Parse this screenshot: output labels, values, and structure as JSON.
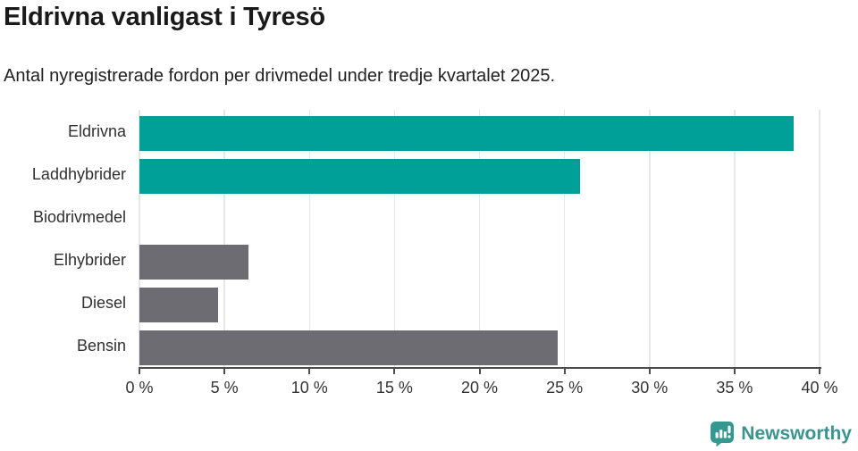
{
  "header": {
    "title": "Eldrivna vanligast i Tyresö",
    "subtitle": "Antal nyregistrerade fordon per drivmedel under tredje kvartalet 2025."
  },
  "chart_data": {
    "type": "bar",
    "orientation": "horizontal",
    "title": "Eldrivna vanligast i Tyresö",
    "subtitle": "Antal nyregistrerade fordon per drivmedel under tredje kvartalet 2025.",
    "categories": [
      "Eldrivna",
      "Laddhybrider",
      "Biodrivmedel",
      "Elhybrider",
      "Diesel",
      "Bensin"
    ],
    "values": [
      38.5,
      25.9,
      0,
      6.4,
      4.6,
      24.6
    ],
    "unit": "%",
    "xlim": [
      0,
      40
    ],
    "xticks": [
      0,
      5,
      10,
      15,
      20,
      25,
      30,
      35,
      40
    ],
    "xtick_suffix": " %",
    "grid": true,
    "bar_colors": [
      "#00A099",
      "#00A099",
      "#6C6C72",
      "#6C6C72",
      "#6C6C72",
      "#6C6C72"
    ]
  },
  "branding": {
    "logo_text": "Newsworthy",
    "logo_color": "#3b948e",
    "icon": "newsworthy-chart-bubble-icon",
    "icon_color": "#359890"
  },
  "colors": {
    "highlight_teal": "#00A099",
    "neutral_gray": "#6C6C72",
    "axis": "#4d4d4d",
    "gridline": "#e7e7e7",
    "title_text": "#1a1a1a",
    "label_text": "#303030"
  }
}
